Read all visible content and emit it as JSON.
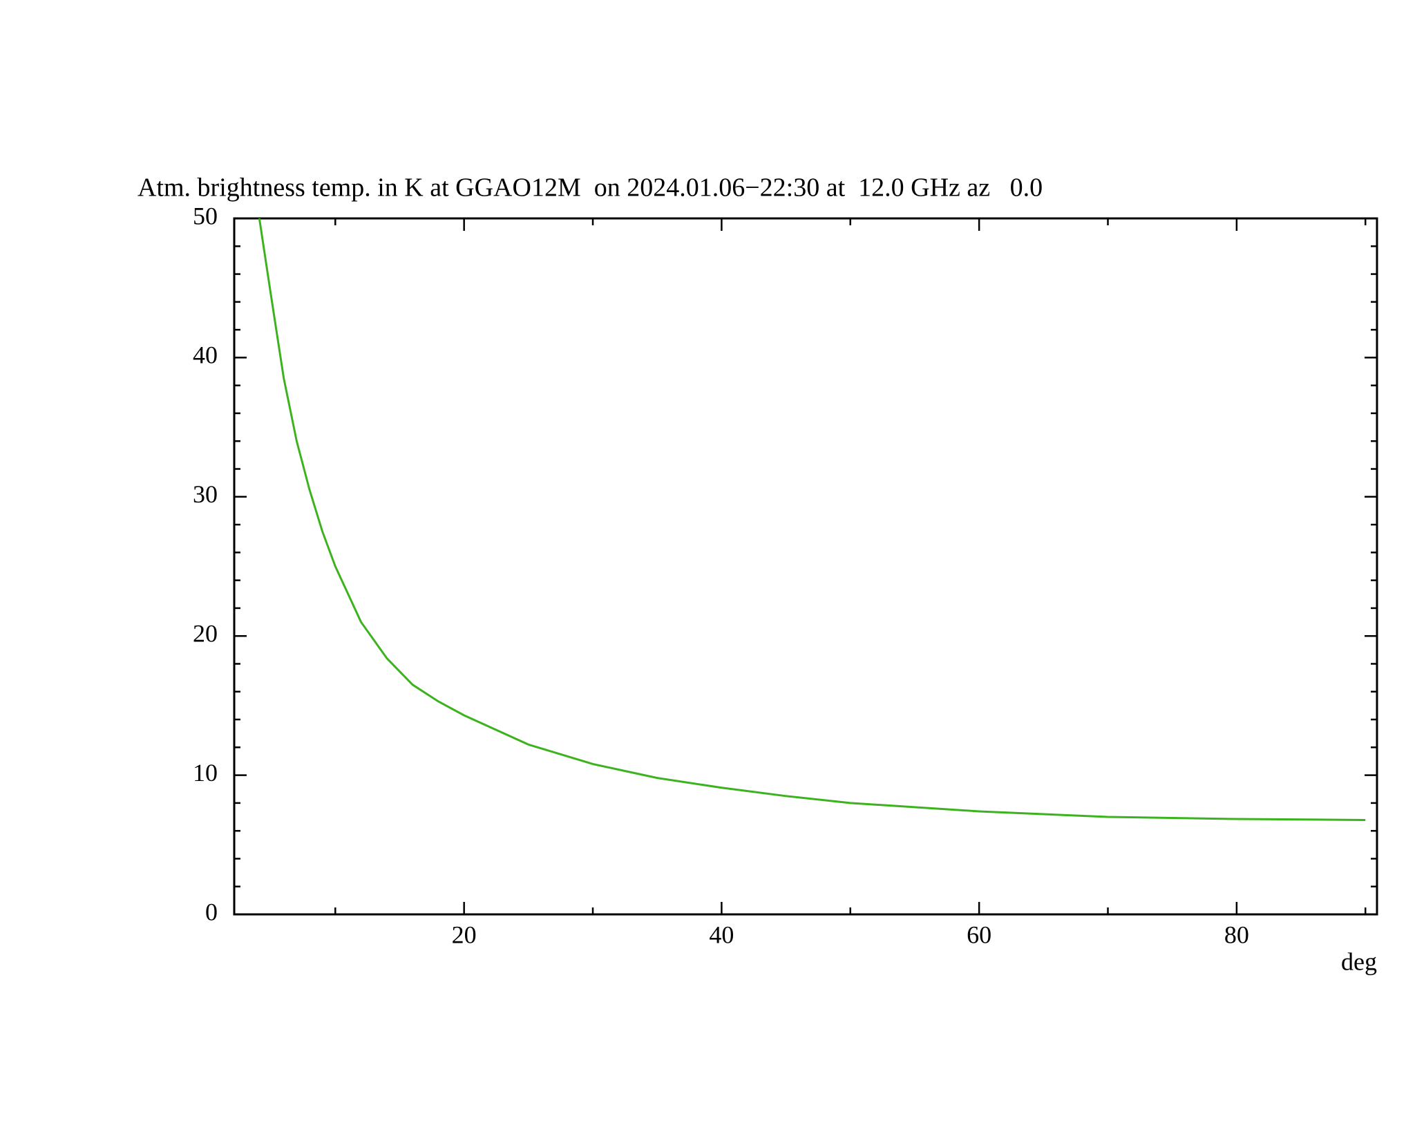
{
  "chart_data": {
    "type": "line",
    "title": "Atm. brightness temp. in K at GGAO12M  on 2024.01.06−22:30 at  12.0 GHz az   0.0",
    "xlabel": "deg",
    "x": [
      4.1,
      5,
      6,
      7,
      8,
      9,
      10,
      12,
      14,
      16,
      18,
      20,
      25,
      30,
      35,
      40,
      45,
      50,
      60,
      70,
      80,
      90
    ],
    "series": [
      {
        "color": "#3cb31e",
        "values": [
          50,
          44.5,
          38.5,
          34,
          30.5,
          27.5,
          25,
          21,
          18.4,
          16.5,
          15.3,
          14.3,
          12.2,
          10.8,
          9.8,
          9.1,
          8.5,
          8.0,
          7.4,
          7.0,
          6.85,
          6.78
        ]
      }
    ],
    "xlim": [
      2.15,
      90.9
    ],
    "ylim": [
      0,
      50
    ],
    "xticks": [
      20,
      40,
      60,
      80
    ],
    "yticks": [
      0,
      10,
      20,
      30,
      40,
      50
    ],
    "xminorticks": [
      10,
      30,
      50,
      70,
      90
    ],
    "yminorticks": [
      2,
      4,
      6,
      8,
      12,
      14,
      16,
      18,
      22,
      24,
      26,
      28,
      32,
      34,
      36,
      38,
      42,
      44,
      46,
      48
    ]
  }
}
